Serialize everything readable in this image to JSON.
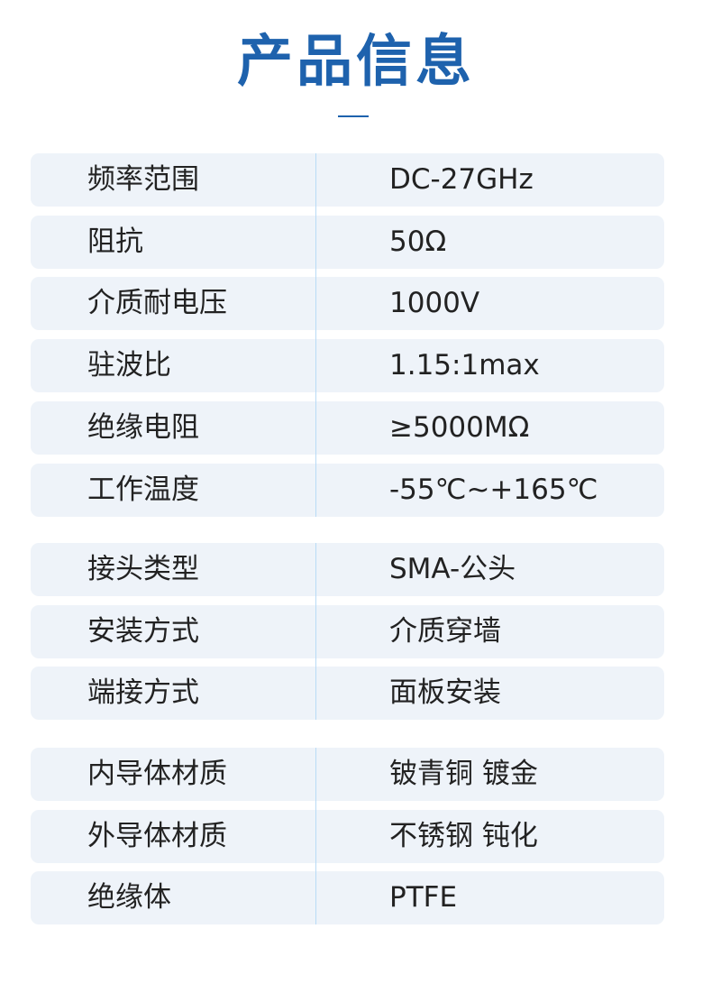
{
  "title": "产品信息",
  "groups": [
    {
      "rows": [
        {
          "label": "频率范围",
          "value": "DC-27GHz"
        },
        {
          "label": "阻抗",
          "value": "50Ω"
        },
        {
          "label": "介质耐电压",
          "value": "1000V"
        },
        {
          "label": "驻波比",
          "value": "1.15:1max"
        },
        {
          "label": "绝缘电阻",
          "value": "≥5000MΩ"
        },
        {
          "label": "工作温度",
          "value": "-55℃~+165℃"
        }
      ]
    },
    {
      "rows": [
        {
          "label": "接头类型",
          "value": "SMA-公头"
        },
        {
          "label": "安装方式",
          "value": "介质穿墙"
        },
        {
          "label": "端接方式",
          "value": "面板安装"
        }
      ]
    },
    {
      "rows": [
        {
          "label": "内导体材质",
          "value": "铍青铜 镀金"
        },
        {
          "label": "外导体材质",
          "value": "不锈钢 钝化"
        },
        {
          "label": "绝缘体",
          "value": "PTFE"
        }
      ]
    }
  ]
}
